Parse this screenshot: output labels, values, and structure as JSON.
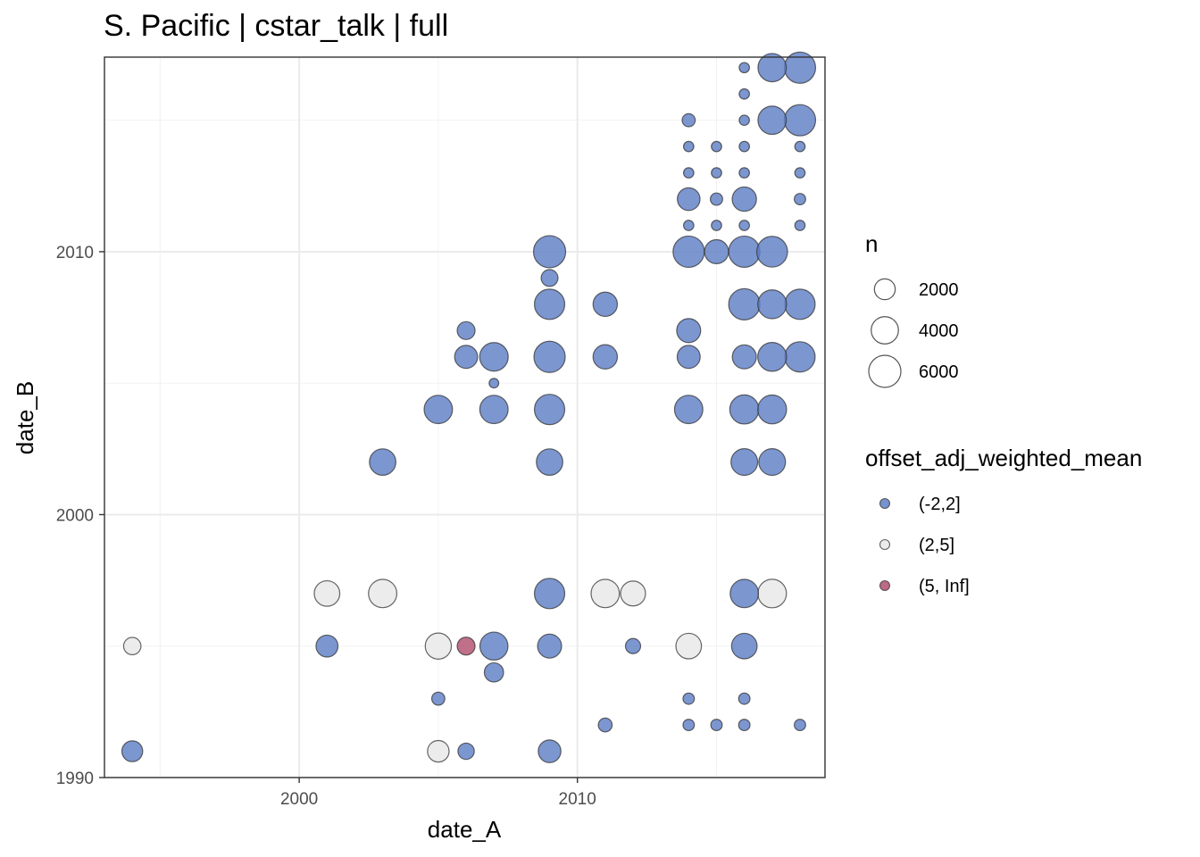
{
  "chart_data": {
    "type": "scatter",
    "title": "S. Pacific | cstar_talk | full",
    "xlabel": "date_A",
    "ylabel": "date_B",
    "xlim": [
      1993.0,
      2018.9
    ],
    "ylim": [
      1990.0,
      2017.4
    ],
    "x_ticks": [
      2000,
      2010
    ],
    "y_ticks": [
      1990,
      2000,
      2010
    ],
    "grid": true,
    "size_legend": {
      "title": "n",
      "entries": [
        {
          "label": "2000",
          "n": 2000
        },
        {
          "label": "4000",
          "n": 4000
        },
        {
          "label": "6000",
          "n": 6000
        }
      ]
    },
    "color_legend": {
      "title": "offset_adj_weighted_mean",
      "position": "right",
      "entries": [
        {
          "label": "(-2,2]",
          "color": "#5f7fc6"
        },
        {
          "label": "(2,5]",
          "color": "#e8e8e8"
        },
        {
          "label": "(5, Inf]",
          "color": "#b2506f"
        }
      ]
    },
    "points": [
      {
        "x": 1994.0,
        "y": 1991.0,
        "n": 2000,
        "bin": "(-2,2]"
      },
      {
        "x": 1994.0,
        "y": 1995.0,
        "n": 1200,
        "bin": "(2,5]"
      },
      {
        "x": 2001.0,
        "y": 1995.0,
        "n": 2300,
        "bin": "(-2,2]"
      },
      {
        "x": 2001.0,
        "y": 1997.0,
        "n": 3400,
        "bin": "(2,5]"
      },
      {
        "x": 2003.0,
        "y": 1997.0,
        "n": 4400,
        "bin": "(2,5]"
      },
      {
        "x": 2003.0,
        "y": 2002.0,
        "n": 3700,
        "bin": "(-2,2]"
      },
      {
        "x": 2005.0,
        "y": 1991.0,
        "n": 2200,
        "bin": "(2,5]"
      },
      {
        "x": 2005.0,
        "y": 1993.0,
        "n": 500,
        "bin": "(-2,2]"
      },
      {
        "x": 2005.0,
        "y": 1995.0,
        "n": 3600,
        "bin": "(2,5]"
      },
      {
        "x": 2005.0,
        "y": 2004.0,
        "n": 4400,
        "bin": "(-2,2]"
      },
      {
        "x": 2006.0,
        "y": 1991.0,
        "n": 1000,
        "bin": "(-2,2]"
      },
      {
        "x": 2006.0,
        "y": 1995.0,
        "n": 1300,
        "bin": "(5, Inf]"
      },
      {
        "x": 2006.0,
        "y": 2006.0,
        "n": 2600,
        "bin": "(-2,2]"
      },
      {
        "x": 2006.0,
        "y": 2007.0,
        "n": 1300,
        "bin": "(-2,2]"
      },
      {
        "x": 2007.0,
        "y": 1994.0,
        "n": 1600,
        "bin": "(-2,2]"
      },
      {
        "x": 2007.0,
        "y": 1995.0,
        "n": 4300,
        "bin": "(-2,2]"
      },
      {
        "x": 2007.0,
        "y": 2004.0,
        "n": 4400,
        "bin": "(-2,2]"
      },
      {
        "x": 2007.0,
        "y": 2005.0,
        "n": 150,
        "bin": "(-2,2]"
      },
      {
        "x": 2007.0,
        "y": 2006.0,
        "n": 4500,
        "bin": "(-2,2]"
      },
      {
        "x": 2009.0,
        "y": 1991.0,
        "n": 2500,
        "bin": "(-2,2]"
      },
      {
        "x": 2009.0,
        "y": 1995.0,
        "n": 2900,
        "bin": "(-2,2]"
      },
      {
        "x": 2009.0,
        "y": 1997.0,
        "n": 5200,
        "bin": "(-2,2]"
      },
      {
        "x": 2009.0,
        "y": 2002.0,
        "n": 3700,
        "bin": "(-2,2]"
      },
      {
        "x": 2009.0,
        "y": 2004.0,
        "n": 5200,
        "bin": "(-2,2]"
      },
      {
        "x": 2009.0,
        "y": 2006.0,
        "n": 5600,
        "bin": "(-2,2]"
      },
      {
        "x": 2009.0,
        "y": 2008.0,
        "n": 5200,
        "bin": "(-2,2]"
      },
      {
        "x": 2009.0,
        "y": 2009.0,
        "n": 1100,
        "bin": "(-2,2]"
      },
      {
        "x": 2009.0,
        "y": 2010.0,
        "n": 6000,
        "bin": "(-2,2]"
      },
      {
        "x": 2011.0,
        "y": 1992.0,
        "n": 600,
        "bin": "(-2,2]"
      },
      {
        "x": 2011.0,
        "y": 1997.0,
        "n": 4400,
        "bin": "(2,5]"
      },
      {
        "x": 2011.0,
        "y": 2006.0,
        "n": 3000,
        "bin": "(-2,2]"
      },
      {
        "x": 2011.0,
        "y": 2008.0,
        "n": 3000,
        "bin": "(-2,2]"
      },
      {
        "x": 2012.0,
        "y": 1995.0,
        "n": 800,
        "bin": "(-2,2]"
      },
      {
        "x": 2012.0,
        "y": 1997.0,
        "n": 3200,
        "bin": "(2,5]"
      },
      {
        "x": 2014.0,
        "y": 1992.0,
        "n": 300,
        "bin": "(-2,2]"
      },
      {
        "x": 2014.0,
        "y": 1993.0,
        "n": 300,
        "bin": "(-2,2]"
      },
      {
        "x": 2014.0,
        "y": 1995.0,
        "n": 3400,
        "bin": "(2,5]"
      },
      {
        "x": 2014.0,
        "y": 2004.0,
        "n": 4400,
        "bin": "(-2,2]"
      },
      {
        "x": 2014.0,
        "y": 2006.0,
        "n": 2600,
        "bin": "(-2,2]"
      },
      {
        "x": 2014.0,
        "y": 2007.0,
        "n": 2900,
        "bin": "(-2,2]"
      },
      {
        "x": 2014.0,
        "y": 2010.0,
        "n": 5600,
        "bin": "(-2,2]"
      },
      {
        "x": 2014.0,
        "y": 2011.0,
        "n": 200,
        "bin": "(-2,2]"
      },
      {
        "x": 2014.0,
        "y": 2012.0,
        "n": 2500,
        "bin": "(-2,2]"
      },
      {
        "x": 2014.0,
        "y": 2013.0,
        "n": 200,
        "bin": "(-2,2]"
      },
      {
        "x": 2014.0,
        "y": 2014.0,
        "n": 200,
        "bin": "(-2,2]"
      },
      {
        "x": 2014.0,
        "y": 2015.0,
        "n": 500,
        "bin": "(-2,2]"
      },
      {
        "x": 2015.0,
        "y": 1992.0,
        "n": 300,
        "bin": "(-2,2]"
      },
      {
        "x": 2015.0,
        "y": 2010.0,
        "n": 2900,
        "bin": "(-2,2]"
      },
      {
        "x": 2015.0,
        "y": 2011.0,
        "n": 200,
        "bin": "(-2,2]"
      },
      {
        "x": 2015.0,
        "y": 2012.0,
        "n": 400,
        "bin": "(-2,2]"
      },
      {
        "x": 2015.0,
        "y": 2013.0,
        "n": 200,
        "bin": "(-2,2]"
      },
      {
        "x": 2015.0,
        "y": 2014.0,
        "n": 200,
        "bin": "(-2,2]"
      },
      {
        "x": 2016.0,
        "y": 1992.0,
        "n": 300,
        "bin": "(-2,2]"
      },
      {
        "x": 2016.0,
        "y": 1993.0,
        "n": 300,
        "bin": "(-2,2]"
      },
      {
        "x": 2016.0,
        "y": 1995.0,
        "n": 3400,
        "bin": "(-2,2]"
      },
      {
        "x": 2016.0,
        "y": 1997.0,
        "n": 4400,
        "bin": "(-2,2]"
      },
      {
        "x": 2016.0,
        "y": 2002.0,
        "n": 3800,
        "bin": "(-2,2]"
      },
      {
        "x": 2016.0,
        "y": 2004.0,
        "n": 4700,
        "bin": "(-2,2]"
      },
      {
        "x": 2016.0,
        "y": 2006.0,
        "n": 2900,
        "bin": "(-2,2]"
      },
      {
        "x": 2016.0,
        "y": 2008.0,
        "n": 5600,
        "bin": "(-2,2]"
      },
      {
        "x": 2016.0,
        "y": 2010.0,
        "n": 5600,
        "bin": "(-2,2]"
      },
      {
        "x": 2016.0,
        "y": 2011.0,
        "n": 200,
        "bin": "(-2,2]"
      },
      {
        "x": 2016.0,
        "y": 2012.0,
        "n": 3000,
        "bin": "(-2,2]"
      },
      {
        "x": 2016.0,
        "y": 2013.0,
        "n": 200,
        "bin": "(-2,2]"
      },
      {
        "x": 2016.0,
        "y": 2014.0,
        "n": 200,
        "bin": "(-2,2]"
      },
      {
        "x": 2016.0,
        "y": 2015.0,
        "n": 200,
        "bin": "(-2,2]"
      },
      {
        "x": 2016.0,
        "y": 2016.0,
        "n": 200,
        "bin": "(-2,2]"
      },
      {
        "x": 2016.0,
        "y": 2017.0,
        "n": 200,
        "bin": "(-2,2]"
      },
      {
        "x": 2017.0,
        "y": 1997.0,
        "n": 4500,
        "bin": "(2,5]"
      },
      {
        "x": 2017.0,
        "y": 2002.0,
        "n": 3800,
        "bin": "(-2,2]"
      },
      {
        "x": 2017.0,
        "y": 2004.0,
        "n": 4600,
        "bin": "(-2,2]"
      },
      {
        "x": 2017.0,
        "y": 2006.0,
        "n": 4600,
        "bin": "(-2,2]"
      },
      {
        "x": 2017.0,
        "y": 2008.0,
        "n": 4600,
        "bin": "(-2,2]"
      },
      {
        "x": 2017.0,
        "y": 2010.0,
        "n": 5400,
        "bin": "(-2,2]"
      },
      {
        "x": 2017.0,
        "y": 2015.0,
        "n": 4400,
        "bin": "(-2,2]"
      },
      {
        "x": 2017.0,
        "y": 2017.0,
        "n": 4400,
        "bin": "(-2,2]"
      },
      {
        "x": 2018.0,
        "y": 1992.0,
        "n": 300,
        "bin": "(-2,2]"
      },
      {
        "x": 2018.0,
        "y": 2006.0,
        "n": 5200,
        "bin": "(-2,2]"
      },
      {
        "x": 2018.0,
        "y": 2008.0,
        "n": 5200,
        "bin": "(-2,2]"
      },
      {
        "x": 2018.0,
        "y": 2011.0,
        "n": 200,
        "bin": "(-2,2]"
      },
      {
        "x": 2018.0,
        "y": 2012.0,
        "n": 300,
        "bin": "(-2,2]"
      },
      {
        "x": 2018.0,
        "y": 2013.0,
        "n": 200,
        "bin": "(-2,2]"
      },
      {
        "x": 2018.0,
        "y": 2014.0,
        "n": 200,
        "bin": "(-2,2]"
      },
      {
        "x": 2018.0,
        "y": 2015.0,
        "n": 5600,
        "bin": "(-2,2]"
      },
      {
        "x": 2018.0,
        "y": 2017.0,
        "n": 5600,
        "bin": "(-2,2]"
      }
    ]
  }
}
